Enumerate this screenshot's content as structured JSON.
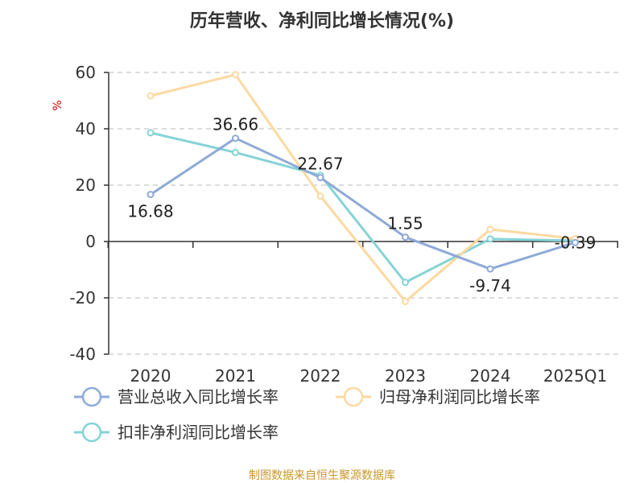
{
  "chart_data": {
    "type": "line",
    "title": "历年营收、净利同比增长情况(%)",
    "ylabel": "%",
    "xlabel": "",
    "categories": [
      "2020",
      "2021",
      "2022",
      "2023",
      "2024",
      "2025Q1"
    ],
    "ylim": [
      -40,
      60
    ],
    "yticks": [
      -40,
      -20,
      0,
      20,
      40,
      60
    ],
    "grid": true,
    "legend_position": "bottom-left",
    "series": [
      {
        "name": "营业总收入同比增长率",
        "color": "#8eaad8",
        "values": [
          16.68,
          36.66,
          22.67,
          1.55,
          -9.74,
          -0.39
        ],
        "labels": [
          "16.68",
          "36.66",
          "22.67",
          "1.55",
          "-9.74",
          "-0.39"
        ]
      },
      {
        "name": "归母净利润同比增长率",
        "color": "#fcd9a0",
        "values": [
          51.7,
          59.2,
          16.1,
          -21.3,
          4.3,
          1.0
        ]
      },
      {
        "name": "扣非净利润同比增长率",
        "color": "#85d3d6",
        "values": [
          38.6,
          31.6,
          23.5,
          -14.5,
          0.9,
          0.3
        ]
      }
    ]
  },
  "source": "制图数据来自恒生聚源数据库"
}
